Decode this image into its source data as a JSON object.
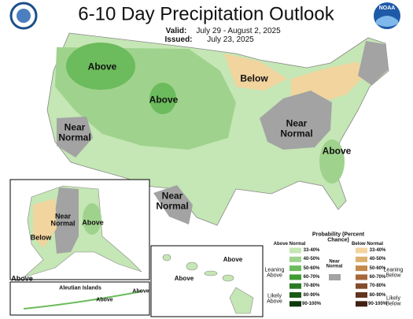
{
  "header": {
    "title": "6-10 Day Precipitation Outlook",
    "valid_label": "Valid:",
    "valid": "July 29 - August 2, 2025",
    "issued_label": "Issued:",
    "issued": "July 23, 2025",
    "noaa_logo": "NOAA"
  },
  "map_labels": [
    "Above",
    "Above",
    "Below",
    "Near Normal",
    "Near Normal",
    "Near Normal",
    "Above"
  ],
  "alaska_labels": [
    "Near Normal",
    "Above",
    "Below",
    "Above"
  ],
  "hawaii_labels": [
    "Above",
    "Above"
  ],
  "aleutian": {
    "title": "Aleutian Islands",
    "labels": [
      "Above",
      "Above"
    ]
  },
  "legend": {
    "title": "Probability (Percent Chance)",
    "above_heading": "Above Normal",
    "below_heading": "Below Normal",
    "near_label": "Near Normal",
    "near_color": "#a3a3a3",
    "leaning_above": "Leaning Above",
    "likely_above": "Likely Above",
    "leaning_below": "Leaning Below",
    "likely_below": "Likely Below",
    "above_bins": [
      {
        "label": "33-40%",
        "color": "#c5e6b5"
      },
      {
        "label": "40-50%",
        "color": "#9fd38d"
      },
      {
        "label": "50-60%",
        "color": "#6cbb5c"
      },
      {
        "label": "60-70%",
        "color": "#3f9c35"
      },
      {
        "label": "70-80%",
        "color": "#2a7a24"
      },
      {
        "label": "80-90%",
        "color": "#1a5a17"
      },
      {
        "label": "90-100%",
        "color": "#0c3a0b"
      }
    ],
    "below_bins": [
      {
        "label": "33-40%",
        "color": "#f2d49e"
      },
      {
        "label": "40-50%",
        "color": "#ddb070"
      },
      {
        "label": "50-60%",
        "color": "#c48a4c"
      },
      {
        "label": "60-70%",
        "color": "#a5673a"
      },
      {
        "label": "70-80%",
        "color": "#834c2b"
      },
      {
        "label": "80-90%",
        "color": "#63341f"
      },
      {
        "label": "90-100%",
        "color": "#3f2013"
      }
    ]
  }
}
